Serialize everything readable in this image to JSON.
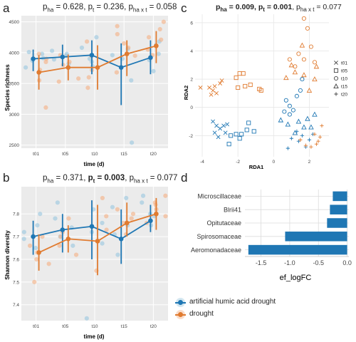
{
  "panels": {
    "a": {
      "letter": "a",
      "title_parts": [
        {
          "text": "p",
          "bold": false
        },
        {
          "sub": "ha",
          "bold": false
        },
        {
          "text": " = 0.628, p",
          "bold": false
        },
        {
          "sub": "t",
          "bold": false
        },
        {
          "text": " = 0.236, p",
          "bold": false
        },
        {
          "sub": "ha x t",
          "bold": false
        },
        {
          "text": " = 0.058",
          "bold": false
        }
      ]
    },
    "b": {
      "letter": "b",
      "title_parts": [
        {
          "text": "p",
          "bold": false
        },
        {
          "sub": "ha",
          "bold": false
        },
        {
          "text": " = 0.371, ",
          "bold": false
        },
        {
          "text": "p",
          "bold": true
        },
        {
          "sub": "t",
          "bold": true
        },
        {
          "text": " = 0.003",
          "bold": true
        },
        {
          "text": ", p",
          "bold": false
        },
        {
          "sub": "ha x t",
          "bold": false
        },
        {
          "text": " = 0.077",
          "bold": false
        }
      ]
    },
    "c": {
      "letter": "c",
      "title_parts": [
        {
          "text": "p",
          "bold": true
        },
        {
          "sub": "ha",
          "bold": true
        },
        {
          "text": " = 0.009, ",
          "bold": true
        },
        {
          "text": "p",
          "bold": true
        },
        {
          "sub": "t",
          "bold": true
        },
        {
          "text": " = 0.001",
          "bold": true
        },
        {
          "text": ", p",
          "bold": false
        },
        {
          "sub": "ha x t",
          "bold": false
        },
        {
          "text": " = 0.077",
          "bold": false
        }
      ]
    },
    "d": {
      "letter": "d"
    }
  },
  "colors": {
    "blue": "#1f77b4",
    "orange": "#e07b30",
    "blue_light": "#9ecae1",
    "orange_light": "#f4b48a"
  },
  "legend": {
    "items": [
      {
        "label": "artificial humic acid drought",
        "color": "#1f77b4"
      },
      {
        "label": "drought",
        "color": "#e07b30"
      }
    ]
  },
  "chart_data": [
    {
      "id": "a",
      "type": "scatter",
      "xlabel": "time (d)",
      "ylabel": "Species richness",
      "categories": [
        "t01",
        "t05",
        "t10",
        "t15",
        "t20"
      ],
      "ylim": [
        2450,
        4600
      ],
      "yticks": [
        2500,
        3000,
        3500,
        4000,
        4500
      ],
      "grid": true,
      "series": [
        {
          "name": "artificial humic acid drought",
          "color": "#1f77b4",
          "means": [
            3900,
            3930,
            3960,
            3760,
            3920
          ],
          "err_low": [
            3700,
            3780,
            3650,
            3150,
            3650
          ],
          "err_high": [
            4050,
            4130,
            4200,
            4150,
            4200
          ],
          "points": [
            [
              3980,
              3870,
              3760,
              4010,
              3910
            ],
            [
              4030,
              3890,
              3950,
              3980,
              3820
            ],
            [
              4250,
              3850,
              4080,
              3900,
              3780
            ],
            [
              2540,
              3960,
              4060,
              3550,
              3900
            ],
            [
              4180,
              3980,
              4120,
              3700,
              3880
            ]
          ]
        },
        {
          "name": "drought",
          "color": "#e07b30",
          "means": [
            3680,
            3760,
            3760,
            3980,
            4110
          ],
          "err_low": [
            3400,
            3550,
            3400,
            3620,
            3830
          ],
          "err_high": [
            3960,
            3970,
            4120,
            4200,
            4350
          ],
          "points": [
            [
              3110,
              3720,
              3550,
              3850,
              3980,
              3900
            ],
            [
              3530,
              3800,
              3850,
              3580,
              3960
            ],
            [
              3430,
              3720,
              3950,
              4180,
              3600
            ],
            [
              4430,
              4080,
              3950,
              3680,
              4300,
              4150
            ],
            [
              4380,
              4500,
              4250,
              3960,
              4050,
              4210
            ]
          ]
        }
      ]
    },
    {
      "id": "b",
      "type": "scatter",
      "xlabel": "time (d)",
      "ylabel": "Shannon diversity",
      "categories": [
        "t01",
        "t05",
        "t10",
        "t15",
        "t20"
      ],
      "ylim": [
        7.33,
        7.92
      ],
      "yticks": [
        7.4,
        7.5,
        7.6,
        7.7,
        7.8
      ],
      "grid": true,
      "series": [
        {
          "name": "artificial humic acid drought",
          "color": "#1f77b4",
          "means": [
            7.7,
            7.73,
            7.745,
            7.69,
            7.77
          ],
          "err_low": [
            7.62,
            7.63,
            7.6,
            7.58,
            7.72
          ],
          "err_high": [
            7.77,
            7.8,
            7.86,
            7.82,
            7.84
          ],
          "points": [
            [
              7.8,
              7.72,
              7.65,
              7.75,
              7.69
            ],
            [
              7.85,
              7.78,
              7.7,
              7.74,
              7.66
            ],
            [
              7.34,
              7.82,
              7.76,
              7.67,
              7.72
            ],
            [
              7.87,
              7.75,
              7.62,
              7.71,
              7.83
            ],
            [
              7.88,
              7.8,
              7.75,
              7.85,
              7.79
            ]
          ]
        },
        {
          "name": "drought",
          "color": "#e07b30",
          "means": [
            7.63,
            7.69,
            7.68,
            7.76,
            7.8
          ],
          "err_low": [
            7.55,
            7.63,
            7.53,
            7.7,
            7.73
          ],
          "err_high": [
            7.71,
            7.75,
            7.84,
            7.85,
            7.87
          ],
          "points": [
            [
              7.5,
              7.66,
              7.6,
              7.7,
              7.63,
              7.58
            ],
            [
              7.78,
              7.7,
              7.66,
              7.62,
              7.72
            ],
            [
              7.87,
              7.79,
              7.68,
              7.55,
              7.73
            ],
            [
              7.8,
              7.76,
              7.82,
              7.71,
              7.78
            ],
            [
              7.88,
              7.82,
              7.76,
              7.85,
              7.84,
              7.79
            ]
          ]
        }
      ]
    },
    {
      "id": "c",
      "type": "scatter",
      "xlabel": "RDA1",
      "ylabel": "RDA2",
      "xlim": [
        -4.4,
        3.1
      ],
      "ylim": [
        -3.5,
        6.6
      ],
      "xticks": [
        -4,
        -2,
        0,
        2
      ],
      "yticks": [
        -2,
        0,
        2,
        4,
        6
      ],
      "grid": true,
      "shape_legend": [
        "t01",
        "t05",
        "t10",
        "t15",
        "t20"
      ],
      "series": [
        {
          "name": "artificial humic acid drought",
          "color": "#1f77b4",
          "t01": [
            [
              -3.4,
              -1.0
            ],
            [
              -3.2,
              -1.3
            ],
            [
              -3.3,
              -1.8
            ],
            [
              -3.0,
              -1.5
            ],
            [
              -2.8,
              -1.3
            ],
            [
              -2.6,
              -1.2
            ],
            [
              -3.1,
              -2.1
            ],
            [
              -2.7,
              -1.8
            ]
          ],
          "t05": [
            [
              -2.4,
              -2.0
            ],
            [
              -2.1,
              -1.9
            ],
            [
              -1.8,
              -1.9
            ],
            [
              -1.5,
              -1.6
            ],
            [
              -1.4,
              -1.1
            ],
            [
              -1.9,
              -2.2
            ],
            [
              -2.5,
              -2.6
            ],
            [
              -1.1,
              -1.7
            ]
          ],
          "t10": [
            [
              0.7,
              0.5
            ],
            [
              0.9,
              0.1
            ],
            [
              1.1,
              -0.2
            ],
            [
              0.9,
              -0.5
            ],
            [
              0.6,
              -0.3
            ],
            [
              1.3,
              0.8
            ],
            [
              1.6,
              2.0
            ],
            [
              1.5,
              1.2
            ]
          ],
          "t15": [
            [
              0.4,
              -0.9
            ],
            [
              0.8,
              -1.2
            ],
            [
              1.4,
              -1.0
            ],
            [
              1.9,
              -0.8
            ],
            [
              2.3,
              -0.5
            ],
            [
              1.7,
              -1.4
            ],
            [
              1.2,
              -1.8
            ],
            [
              2.1,
              -1.4
            ]
          ],
          "t20": [
            [
              1.0,
              -2.2
            ],
            [
              1.4,
              -2.4
            ],
            [
              2.0,
              -2.3
            ],
            [
              1.6,
              -2.0
            ],
            [
              1.3,
              -1.7
            ],
            [
              1.8,
              -2.8
            ],
            [
              0.8,
              -2.9
            ],
            [
              2.2,
              -1.9
            ]
          ]
        },
        {
          "name": "drought",
          "color": "#e07b30",
          "t01": [
            [
              -4.1,
              1.4
            ],
            [
              -3.6,
              1.4
            ],
            [
              -3.4,
              1.2
            ],
            [
              -3.3,
              1.5
            ],
            [
              -3.0,
              1.7
            ],
            [
              -2.9,
              1.9
            ],
            [
              -3.5,
              0.9
            ],
            [
              -3.2,
              1.0
            ]
          ],
          "t05": [
            [
              -1.9,
              2.4
            ],
            [
              -1.7,
              2.4
            ],
            [
              -2.1,
              2.1
            ],
            [
              -1.6,
              1.5
            ],
            [
              -1.3,
              1.6
            ],
            [
              -0.8,
              1.3
            ],
            [
              -0.7,
              1.2
            ],
            [
              -2.0,
              1.4
            ]
          ],
          "t10": [
            [
              1.7,
              6.3
            ],
            [
              1.9,
              5.6
            ],
            [
              2.1,
              4.3
            ],
            [
              1.4,
              3.8
            ],
            [
              0.9,
              3.4
            ],
            [
              1.7,
              3.4
            ],
            [
              2.3,
              3.2
            ],
            [
              1.2,
              2.9
            ]
          ],
          "t15": [
            [
              1.6,
              4.4
            ],
            [
              1.2,
              2.5
            ],
            [
              1.7,
              2.3
            ],
            [
              2.4,
              2.9
            ],
            [
              2.3,
              2.0
            ],
            [
              0.7,
              2.1
            ],
            [
              1.0,
              3.0
            ],
            [
              2.0,
              1.2
            ]
          ],
          "t20": [
            [
              2.3,
              -1.9
            ],
            [
              2.5,
              -2.4
            ],
            [
              2.7,
              -1.3
            ],
            [
              1.8,
              -2.7
            ],
            [
              2.1,
              -2.8
            ],
            [
              1.5,
              -2.3
            ],
            [
              2.4,
              -2.6
            ],
            [
              2.6,
              -2.1
            ]
          ]
        }
      ]
    },
    {
      "id": "d",
      "type": "bar",
      "orientation": "horizontal",
      "xlabel": "ef_logFC",
      "ylabel": "",
      "categories": [
        "Microscillaceae",
        "Blrii41",
        "Opitutaceae",
        "Spirosomaceae",
        "Aeromonadaceae"
      ],
      "values": [
        -0.25,
        -0.3,
        -0.35,
        -1.08,
        -1.72
      ],
      "xlim": [
        -1.78,
        0.03
      ],
      "xticks": [
        -1.5,
        -1.0,
        -0.5,
        0.0
      ],
      "xticklabels": [
        "-1.5",
        "-1.0",
        "-0.5",
        "0.0"
      ],
      "color": "#1f77b4",
      "grid": true
    }
  ]
}
